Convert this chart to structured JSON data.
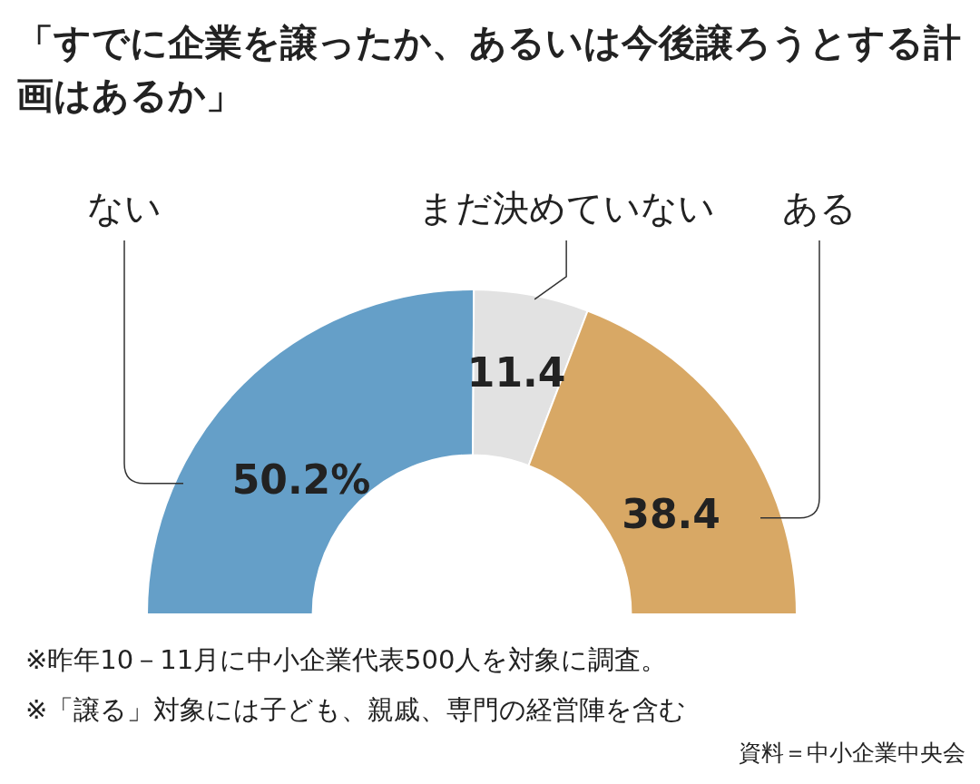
{
  "chart_data": {
    "type": "donut",
    "title": "「すでに企業を譲ったか、あるいは今後譲ろうとする計画はあるか」",
    "categories": [
      "ない",
      "まだ決めていない",
      "ある"
    ],
    "values": [
      50.2,
      11.4,
      38.4
    ],
    "value_labels": [
      "50.2%",
      "11.4",
      "38.4"
    ],
    "colors": [
      "#659fc8",
      "#e2e2e2",
      "#d8a865"
    ],
    "legend": false,
    "annotations": [
      "※昨年10－11月に中小企業代表500人を対象に調査。",
      "※「譲る」対象には子ども、親戚、専門の経営陣を含む",
      "資料＝中小企業中央会"
    ]
  }
}
